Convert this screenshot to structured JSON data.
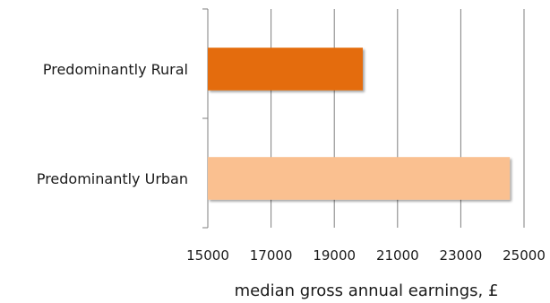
{
  "chart_data": {
    "type": "bar",
    "orientation": "horizontal",
    "categories": [
      "Predominantly Rural",
      "Predominantly Urban"
    ],
    "values": [
      19900,
      24550
    ],
    "colors": [
      "#e46c0a",
      "#fac090"
    ],
    "title": "",
    "xlabel": "median gross annual earnings, £",
    "ylabel": "",
    "xlim": [
      15000,
      25000
    ],
    "xticks": [
      15000,
      17000,
      19000,
      21000,
      23000,
      25000
    ],
    "xtick_labels": [
      "15000",
      "17000",
      "19000",
      "21000",
      "23000",
      "25000"
    ],
    "grid": true
  }
}
